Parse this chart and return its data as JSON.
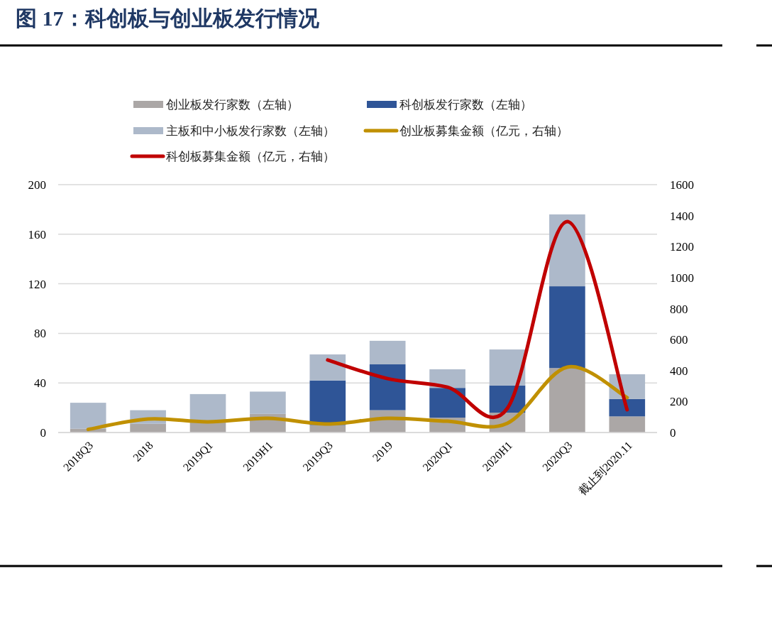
{
  "chart_data": {
    "type": "bar",
    "stacked": true,
    "title": "图 17：科创板与创业板发行情况",
    "categories": [
      "2018Q3",
      "2018",
      "2019Q1",
      "2019H1",
      "2019Q3",
      "2019",
      "2020Q1",
      "2020H1",
      "2020Q3",
      "截止到2020.11"
    ],
    "series": [
      {
        "name": "创业板发行家数（左轴）",
        "color": "#aba7a6",
        "values": [
          3,
          7,
          8,
          15,
          6,
          18,
          12,
          16,
          52,
          13
        ]
      },
      {
        "name": "科创板发行家数（左轴）",
        "color": "#2f5597",
        "values": [
          null,
          null,
          null,
          null,
          36,
          37,
          24,
          22,
          66,
          14
        ]
      },
      {
        "name": "主板和中小板发行家数（左轴）",
        "color": "#adb9ca",
        "values": [
          21,
          11,
          23,
          18,
          21,
          19,
          15,
          29,
          58,
          20
        ]
      },
      {
        "name": "创业板募集金额（亿元，右轴）",
        "type": "line",
        "axis": "y2",
        "color": "#c09000",
        "values": [
          20,
          87,
          69,
          92,
          55,
          92,
          73,
          60,
          422,
          225
        ]
      },
      {
        "name": "科创板募集金额（亿元，右轴）",
        "type": "line",
        "axis": "y2",
        "color": "#c00000",
        "values": [
          null,
          null,
          null,
          null,
          468,
          348,
          293,
          156,
          1362,
          147
        ]
      }
    ],
    "ylim": [
      0,
      200
    ],
    "yticks": [
      0,
      40,
      80,
      120,
      160,
      200
    ],
    "y2lim": [
      0,
      1600
    ],
    "y2ticks": [
      0,
      200,
      400,
      600,
      800,
      1000,
      1200,
      1400,
      1600
    ],
    "grid": "y",
    "legend": "top"
  }
}
